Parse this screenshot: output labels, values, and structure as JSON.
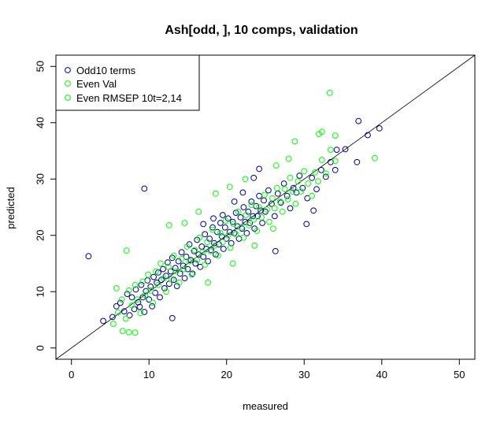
{
  "chart_data": {
    "type": "scatter",
    "title": "Ash[odd, ], 10 comps, validation",
    "xlabel": "measured",
    "ylabel": "predicted",
    "xlim": [
      -2,
      52
    ],
    "ylim": [
      -2,
      52
    ],
    "x_ticks": [
      0,
      10,
      20,
      30,
      40,
      50
    ],
    "y_ticks": [
      0,
      10,
      20,
      30,
      40,
      50
    ],
    "legend_position": "top-left",
    "reference_line": {
      "slope": 1,
      "intercept": 0,
      "color": "#000000"
    },
    "series": [
      {
        "name": "Odd10 terms",
        "color": "#00008b",
        "marker": "open-circle",
        "points": [
          [
            2.2,
            16.3
          ],
          [
            9.4,
            28.3
          ],
          [
            13.0,
            5.3
          ],
          [
            37.0,
            40.3
          ],
          [
            38.2,
            37.8
          ],
          [
            39.7,
            39.0
          ],
          [
            35.3,
            35.3
          ],
          [
            34.2,
            35.2
          ],
          [
            36.8,
            33.0
          ],
          [
            31.2,
            24.4
          ],
          [
            30.3,
            22.0
          ],
          [
            26.3,
            17.2
          ],
          [
            4.1,
            4.8
          ],
          [
            5.3,
            5.5
          ],
          [
            5.8,
            7.4
          ],
          [
            6.3,
            8.0
          ],
          [
            6.8,
            6.5
          ],
          [
            7.2,
            9.6
          ],
          [
            7.5,
            5.8
          ],
          [
            7.8,
            9.0
          ],
          [
            8.1,
            6.9
          ],
          [
            8.3,
            10.4
          ],
          [
            8.6,
            8.1
          ],
          [
            8.8,
            7.3
          ],
          [
            9.0,
            11.2
          ],
          [
            9.2,
            9.0
          ],
          [
            9.4,
            6.4
          ],
          [
            9.6,
            10.1
          ],
          [
            9.8,
            12.0
          ],
          [
            10.0,
            8.6
          ],
          [
            10.2,
            10.9
          ],
          [
            10.4,
            7.4
          ],
          [
            10.6,
            12.6
          ],
          [
            10.8,
            9.8
          ],
          [
            11.0,
            11.6
          ],
          [
            11.2,
            13.4
          ],
          [
            11.4,
            9.0
          ],
          [
            11.6,
            12.1
          ],
          [
            11.8,
            14.0
          ],
          [
            12.0,
            10.6
          ],
          [
            12.2,
            12.8
          ],
          [
            12.4,
            15.2
          ],
          [
            12.6,
            11.4
          ],
          [
            12.8,
            13.6
          ],
          [
            13.0,
            16.0
          ],
          [
            13.2,
            12.1
          ],
          [
            13.4,
            14.2
          ],
          [
            13.6,
            11.0
          ],
          [
            13.8,
            15.4
          ],
          [
            14.0,
            13.2
          ],
          [
            14.2,
            17.0
          ],
          [
            14.4,
            14.6
          ],
          [
            14.6,
            12.4
          ],
          [
            14.8,
            16.2
          ],
          [
            15.0,
            14.0
          ],
          [
            15.2,
            18.4
          ],
          [
            15.4,
            15.6
          ],
          [
            15.6,
            13.2
          ],
          [
            15.8,
            17.2
          ],
          [
            16.0,
            15.0
          ],
          [
            16.2,
            19.2
          ],
          [
            16.4,
            16.6
          ],
          [
            16.6,
            14.4
          ],
          [
            16.8,
            18.0
          ],
          [
            17.0,
            16.2
          ],
          [
            17.2,
            20.2
          ],
          [
            17.4,
            17.6
          ],
          [
            17.6,
            15.4
          ],
          [
            17.8,
            19.4
          ],
          [
            18.0,
            17.4
          ],
          [
            18.2,
            21.4
          ],
          [
            18.4,
            18.6
          ],
          [
            18.6,
            16.6
          ],
          [
            18.8,
            20.6
          ],
          [
            19.0,
            18.4
          ],
          [
            19.2,
            22.2
          ],
          [
            19.4,
            19.8
          ],
          [
            19.6,
            17.6
          ],
          [
            19.8,
            21.4
          ],
          [
            20.0,
            19.4
          ],
          [
            20.2,
            23.0
          ],
          [
            20.4,
            20.6
          ],
          [
            20.6,
            18.6
          ],
          [
            20.8,
            22.4
          ],
          [
            21.0,
            20.4
          ],
          [
            21.2,
            24.0
          ],
          [
            21.4,
            21.6
          ],
          [
            21.6,
            19.4
          ],
          [
            21.8,
            23.2
          ],
          [
            22.0,
            21.2
          ],
          [
            22.2,
            25.0
          ],
          [
            22.4,
            22.4
          ],
          [
            22.6,
            20.4
          ],
          [
            22.8,
            24.2
          ],
          [
            23.0,
            22.2
          ],
          [
            23.2,
            26.0
          ],
          [
            23.4,
            23.4
          ],
          [
            23.6,
            21.2
          ],
          [
            23.8,
            25.2
          ],
          [
            24.0,
            23.4
          ],
          [
            24.2,
            27.0
          ],
          [
            24.4,
            24.4
          ],
          [
            24.6,
            22.2
          ],
          [
            24.8,
            26.2
          ],
          [
            25.0,
            24.2
          ],
          [
            25.4,
            28.0
          ],
          [
            25.8,
            25.6
          ],
          [
            26.2,
            23.4
          ],
          [
            26.6,
            27.4
          ],
          [
            27.0,
            25.8
          ],
          [
            27.4,
            29.2
          ],
          [
            27.8,
            27.0
          ],
          [
            28.2,
            24.8
          ],
          [
            28.6,
            28.4
          ],
          [
            29.0,
            27.6
          ],
          [
            29.4,
            30.6
          ],
          [
            29.8,
            28.4
          ],
          [
            30.4,
            26.6
          ],
          [
            31.0,
            30.2
          ],
          [
            31.6,
            28.2
          ],
          [
            32.2,
            31.6
          ],
          [
            32.8,
            30.4
          ],
          [
            33.4,
            33.0
          ],
          [
            34.0,
            31.6
          ],
          [
            24.2,
            31.8
          ],
          [
            23.5,
            30.2
          ],
          [
            22.1,
            27.6
          ],
          [
            21.0,
            26.0
          ],
          [
            19.5,
            23.6
          ],
          [
            18.3,
            23.0
          ],
          [
            17.0,
            22.0
          ]
        ]
      },
      {
        "name": "Even Val",
        "color": "#00ff00",
        "marker": "open-circle",
        "points": [
          [
            7.1,
            17.3
          ],
          [
            5.8,
            10.6
          ],
          [
            6.6,
            3.0
          ],
          [
            7.4,
            2.8
          ],
          [
            8.2,
            2.7
          ],
          [
            5.4,
            4.3
          ],
          [
            33.3,
            45.3
          ],
          [
            32.3,
            38.4
          ],
          [
            28.8,
            36.7
          ],
          [
            39.1,
            33.7
          ],
          [
            34.0,
            37.7
          ],
          [
            31.9,
            38.0
          ],
          [
            6.0,
            6.3
          ],
          [
            6.5,
            8.6
          ],
          [
            7.0,
            5.2
          ],
          [
            7.4,
            10.2
          ],
          [
            7.8,
            7.6
          ],
          [
            8.2,
            11.2
          ],
          [
            8.5,
            8.6
          ],
          [
            8.9,
            6.2
          ],
          [
            9.2,
            11.8
          ],
          [
            9.5,
            9.4
          ],
          [
            9.9,
            13.0
          ],
          [
            10.2,
            10.2
          ],
          [
            10.5,
            8.0
          ],
          [
            10.9,
            13.6
          ],
          [
            11.2,
            11.2
          ],
          [
            11.5,
            15.0
          ],
          [
            11.9,
            12.4
          ],
          [
            12.2,
            10.0
          ],
          [
            12.5,
            14.4
          ],
          [
            12.9,
            12.2
          ],
          [
            13.2,
            16.4
          ],
          [
            13.5,
            13.6
          ],
          [
            13.9,
            11.6
          ],
          [
            14.2,
            15.8
          ],
          [
            14.5,
            14.0
          ],
          [
            14.9,
            18.0
          ],
          [
            15.2,
            15.4
          ],
          [
            15.5,
            13.0
          ],
          [
            15.9,
            17.4
          ],
          [
            16.2,
            15.6
          ],
          [
            16.5,
            19.6
          ],
          [
            16.9,
            17.0
          ],
          [
            17.2,
            14.8
          ],
          [
            17.5,
            18.8
          ],
          [
            17.9,
            17.2
          ],
          [
            18.2,
            21.0
          ],
          [
            18.5,
            18.2
          ],
          [
            18.9,
            16.4
          ],
          [
            19.2,
            20.4
          ],
          [
            19.5,
            18.8
          ],
          [
            19.9,
            22.6
          ],
          [
            20.2,
            20.0
          ],
          [
            20.5,
            17.8
          ],
          [
            20.9,
            22.0
          ],
          [
            21.2,
            20.2
          ],
          [
            21.5,
            24.2
          ],
          [
            21.9,
            21.4
          ],
          [
            22.2,
            19.6
          ],
          [
            22.5,
            23.6
          ],
          [
            22.9,
            21.8
          ],
          [
            23.2,
            25.4
          ],
          [
            23.5,
            22.8
          ],
          [
            23.9,
            20.8
          ],
          [
            24.2,
            25.0
          ],
          [
            24.5,
            23.2
          ],
          [
            24.9,
            27.2
          ],
          [
            25.2,
            24.6
          ],
          [
            25.5,
            22.4
          ],
          [
            25.9,
            26.6
          ],
          [
            26.2,
            24.8
          ],
          [
            26.5,
            28.4
          ],
          [
            26.9,
            26.0
          ],
          [
            27.2,
            24.2
          ],
          [
            27.5,
            28.2
          ],
          [
            27.9,
            26.4
          ],
          [
            28.2,
            30.2
          ],
          [
            28.5,
            27.8
          ],
          [
            28.9,
            25.6
          ],
          [
            29.2,
            29.6
          ],
          [
            29.6,
            27.8
          ],
          [
            30.0,
            31.4
          ],
          [
            30.5,
            29.2
          ],
          [
            31.0,
            27.0
          ],
          [
            31.4,
            31.2
          ],
          [
            31.8,
            29.6
          ],
          [
            32.3,
            33.4
          ],
          [
            32.8,
            31.0
          ],
          [
            33.4,
            35.2
          ],
          [
            34.0,
            33.2
          ],
          [
            12.6,
            21.8
          ],
          [
            14.6,
            22.2
          ],
          [
            16.4,
            24.2
          ],
          [
            18.6,
            27.4
          ],
          [
            20.4,
            28.6
          ],
          [
            22.4,
            30.0
          ],
          [
            26.4,
            32.4
          ],
          [
            28.0,
            33.6
          ],
          [
            17.6,
            11.6
          ],
          [
            20.8,
            15.0
          ],
          [
            23.6,
            18.2
          ],
          [
            26.0,
            21.2
          ]
        ]
      }
    ],
    "legend_entries": [
      "Odd10 terms",
      "Even Val",
      "Even RMSEP 10t=2,14"
    ]
  }
}
